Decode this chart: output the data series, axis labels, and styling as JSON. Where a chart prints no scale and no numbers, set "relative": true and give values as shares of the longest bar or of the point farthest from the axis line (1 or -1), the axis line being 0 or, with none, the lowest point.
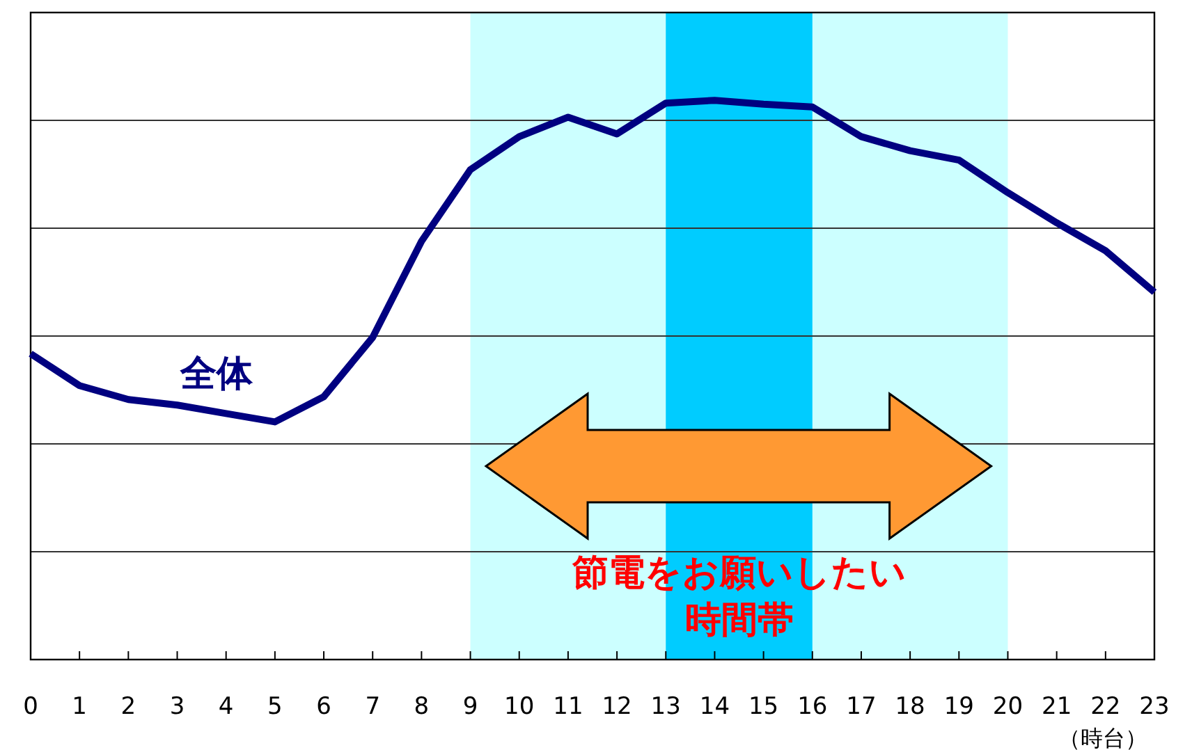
{
  "chart_data": {
    "type": "line",
    "relative": true,
    "xlabel": "（時台）",
    "x": [
      0,
      1,
      2,
      3,
      4,
      5,
      6,
      7,
      8,
      9,
      10,
      11,
      12,
      13,
      14,
      15,
      16,
      17,
      18,
      19,
      20,
      21,
      22,
      23
    ],
    "series": [
      {
        "name": "全体",
        "color": "#000080",
        "values": [
          0.547,
          0.49,
          0.465,
          0.455,
          0.44,
          0.425,
          0.47,
          0.576,
          0.748,
          0.876,
          0.935,
          0.97,
          0.94,
          0.995,
          1,
          0.993,
          0.988,
          0.935,
          0.91,
          0.893,
          0.835,
          0.781,
          0.731,
          0.657
        ]
      }
    ],
    "xlim": [
      0,
      23
    ],
    "xticks": [
      0,
      1,
      2,
      3,
      4,
      5,
      6,
      7,
      8,
      9,
      10,
      11,
      12,
      13,
      14,
      15,
      16,
      17,
      18,
      19,
      20,
      21,
      22,
      23
    ],
    "bands": [
      {
        "axis": "x",
        "from": 9,
        "to": 20,
        "color": "#ccffff"
      },
      {
        "axis": "x",
        "from": 13,
        "to": 16,
        "color": "#00ccff"
      }
    ],
    "annotations": [
      "節電をお願いしたい",
      "時間帯"
    ],
    "grid": "y",
    "marker": "none",
    "line_style": "solid"
  }
}
